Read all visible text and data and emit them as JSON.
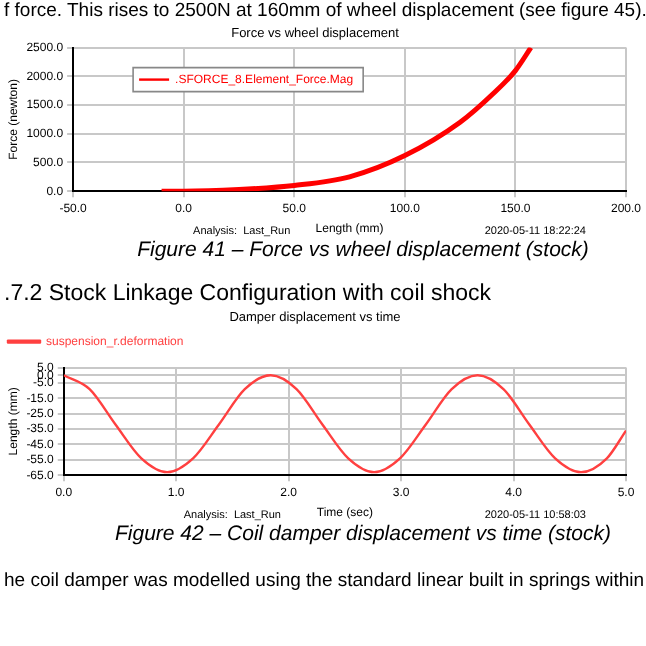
{
  "chart_data": [
    {
      "type": "line",
      "title": "Force vs wheel displacement",
      "xlabel": "Length (mm)",
      "ylabel": "Force (newton)",
      "series": [
        {
          "name": ".SFORCE_8.Element_Force.Mag",
          "color": "#ff0000",
          "x": [
            -10,
            0,
            25,
            50,
            75,
            100,
            125,
            140,
            150,
            157
          ],
          "values": [
            0,
            0,
            30,
            100,
            250,
            620,
            1200,
            1700,
            2100,
            2500
          ]
        }
      ],
      "xlim": [
        -50,
        200
      ],
      "xticks": [
        {
          "value": -50,
          "label": "-50.0"
        },
        {
          "value": 0,
          "label": "0.0"
        },
        {
          "value": 50,
          "label": "50.0"
        },
        {
          "value": 100,
          "label": "100.0"
        },
        {
          "value": 150,
          "label": "150.0"
        },
        {
          "value": 200,
          "label": "200.0"
        }
      ],
      "ylim": [
        0,
        2500
      ],
      "yticks": [
        {
          "value": 0,
          "label": "0.0"
        },
        {
          "value": 500,
          "label": "500.0"
        },
        {
          "value": 1000,
          "label": "1000.0"
        },
        {
          "value": 1500,
          "label": "1500.0"
        },
        {
          "value": 2000,
          "label": "2000.0"
        },
        {
          "value": 2500,
          "label": "2500.0"
        }
      ],
      "grid": true,
      "legend": "top left",
      "marker": "none",
      "line_style": "solid",
      "annotations": [
        "Analysis:  Last_Run",
        "2020-05-11 18:22:24",
        "Figure 41 – Force vs wheel displacement (stock)",
        "f force. This rises to 2500N at 160mm of wheel displacement (see figure 45)."
      ]
    },
    {
      "type": "line",
      "title": "Damper displacement vs time",
      "xlabel": "Time (sec)",
      "ylabel": "Length (mm)",
      "series": [
        {
          "name": "suspension_r.deformation",
          "color": "#ff4040",
          "x": [
            0,
            0.23,
            0.46,
            0.69,
            0.92,
            1.15,
            1.38,
            1.61,
            1.84,
            2.07,
            2.3,
            2.53,
            2.76,
            2.99,
            3.22,
            3.45,
            3.68,
            3.91,
            4.14,
            4.37,
            4.6,
            4.83,
            5.0
          ],
          "values": [
            0,
            -9,
            -32,
            -54,
            -63,
            -54,
            -32,
            -9,
            0,
            -9,
            -32,
            -54,
            -63,
            -54,
            -32,
            -9,
            0,
            -9,
            -32,
            -54,
            -63,
            -54,
            -36
          ]
        }
      ],
      "xlim": [
        0,
        5
      ],
      "xticks": [
        {
          "value": 0,
          "label": "0.0"
        },
        {
          "value": 1,
          "label": "1.0"
        },
        {
          "value": 2,
          "label": "2.0"
        },
        {
          "value": 3,
          "label": "3.0"
        },
        {
          "value": 4,
          "label": "4.0"
        },
        {
          "value": 5,
          "label": "5.0"
        }
      ],
      "ylim": [
        -65,
        5
      ],
      "yticks": [
        {
          "value": 5,
          "label": "5.0"
        },
        {
          "value": 0,
          "label": "0.0"
        },
        {
          "value": -5,
          "label": "-5.0"
        },
        {
          "value": -15,
          "label": "-15.0"
        },
        {
          "value": -25,
          "label": "-25.0"
        },
        {
          "value": -35,
          "label": "-35.0"
        },
        {
          "value": -45,
          "label": "-45.0"
        },
        {
          "value": -55,
          "label": "-55.0"
        },
        {
          "value": -65,
          "label": "-65.0"
        }
      ],
      "grid": true,
      "legend": "top",
      "marker": "none",
      "line_style": "solid",
      "annotations": [
        "Analysis:  Last_Run",
        "2020-05-11 10:58:03",
        "Figure 42 – Coil damper displacement vs time (stock)",
        ".7.2 Stock Linkage Configuration with coil shock",
        "he coil damper was modelled using the standard linear built in springs within"
      ]
    }
  ]
}
